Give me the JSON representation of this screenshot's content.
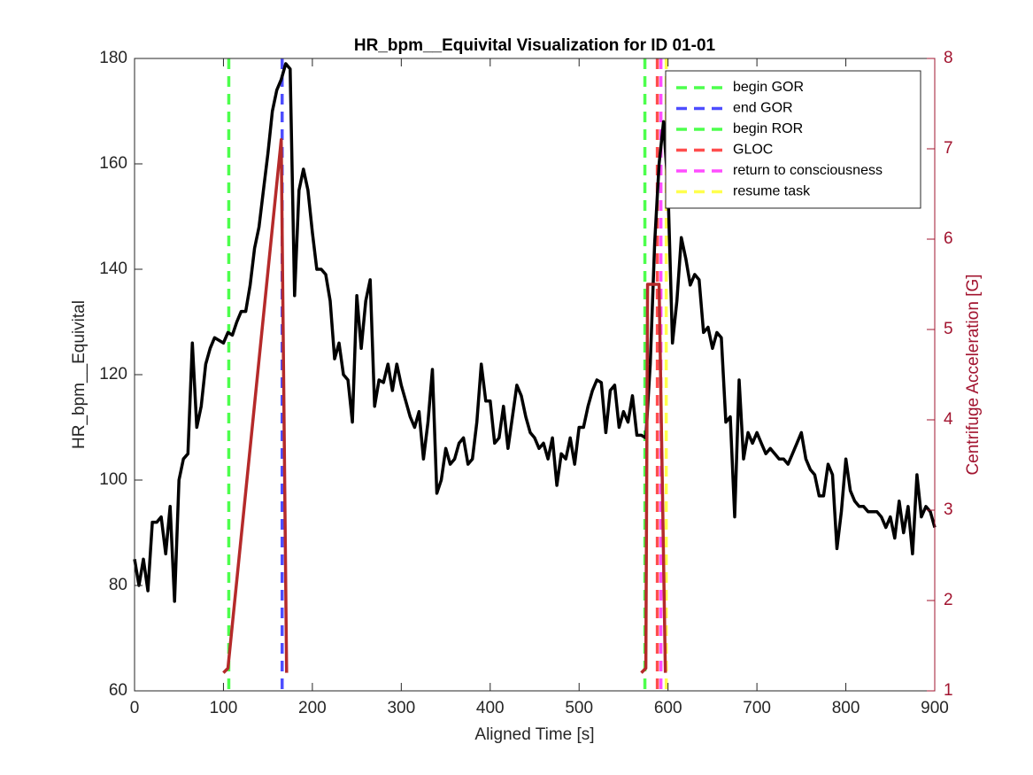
{
  "chart_data": {
    "type": "line",
    "title": "HR_bpm__Equivital Visualization for ID 01-01",
    "x_label": "Aligned Time [s]",
    "y_label": "HR_bpm__Equivital",
    "y2_label": "Centrifuge Acceleration [G]",
    "xlim": [
      0,
      900
    ],
    "xticks": [
      0,
      100,
      200,
      300,
      400,
      500,
      600,
      700,
      800,
      900
    ],
    "ylim": [
      60,
      180
    ],
    "yticks": [
      60,
      80,
      100,
      120,
      140,
      160,
      180
    ],
    "y2lim": [
      1,
      8
    ],
    "y2ticks": [
      1,
      2,
      3,
      4,
      5,
      6,
      7,
      8
    ],
    "y2_color": "#a2142f",
    "legend": "northeast",
    "series": [
      {
        "color": "#000000",
        "x": [
          0,
          5,
          10,
          15,
          20,
          25,
          30,
          35,
          40,
          45,
          50,
          55,
          60,
          65,
          70,
          75,
          80,
          85,
          90,
          95,
          100,
          105,
          110,
          115,
          120,
          125,
          130,
          135,
          140,
          145,
          150,
          155,
          160,
          165,
          170,
          175,
          180,
          185,
          190,
          195,
          200,
          205,
          210,
          215,
          220,
          225,
          230,
          235,
          240,
          245,
          250,
          255,
          260,
          265,
          270,
          275,
          280,
          285,
          290,
          295,
          300,
          305,
          310,
          315,
          320,
          325,
          330,
          335,
          340,
          345,
          350,
          355,
          360,
          365,
          370,
          375,
          380,
          385,
          390,
          395,
          400,
          405,
          410,
          415,
          420,
          425,
          430,
          435,
          440,
          445,
          450,
          455,
          460,
          465,
          470,
          475,
          480,
          485,
          490,
          495,
          500,
          505,
          510,
          515,
          520,
          525,
          530,
          535,
          540,
          545,
          550,
          555,
          560,
          565,
          570,
          575,
          580,
          585,
          590,
          595,
          600,
          605,
          610,
          615,
          620,
          625,
          630,
          635,
          640,
          645,
          650,
          655,
          660,
          665,
          670,
          675,
          680,
          685,
          690,
          695,
          700,
          705,
          710,
          715,
          720,
          725,
          730,
          735,
          740,
          745,
          750,
          755,
          760,
          765,
          770,
          775,
          780,
          785,
          790,
          795,
          800,
          805,
          810,
          815,
          820,
          825,
          830,
          835,
          840,
          845,
          850,
          855,
          860,
          865,
          870,
          875,
          880,
          885,
          890,
          895,
          900
        ],
        "values": [
          85,
          80,
          85,
          79,
          92,
          92,
          93,
          86,
          95,
          77,
          100,
          104,
          105,
          126,
          110,
          114,
          122,
          125,
          127,
          126.5,
          126,
          128,
          127.5,
          130,
          132,
          132,
          137,
          144,
          148,
          155,
          162,
          170,
          174,
          176,
          179,
          178,
          135,
          155,
          159,
          155,
          147,
          140,
          140,
          139,
          134,
          123,
          126,
          120,
          119,
          111,
          135,
          125,
          134,
          138,
          114,
          119,
          118.5,
          122,
          117,
          122,
          118,
          115,
          112,
          110,
          113,
          104,
          111,
          121,
          97.5,
          100,
          106,
          103,
          104,
          107,
          108,
          103,
          104,
          111,
          122,
          115,
          115,
          107,
          108,
          114,
          106,
          112,
          118,
          116,
          112,
          109,
          108,
          106,
          107,
          104,
          108,
          99,
          105,
          104,
          108,
          103,
          110,
          110,
          114,
          117,
          119,
          118.5,
          109,
          117,
          118,
          110,
          113,
          111,
          116,
          108.5,
          108.5,
          108,
          122,
          145,
          160,
          168,
          155,
          126,
          134,
          146,
          142,
          137,
          139,
          138,
          128,
          129,
          125,
          128,
          127,
          111,
          112,
          93,
          119,
          104,
          109,
          107,
          109,
          107,
          105,
          106,
          105,
          104,
          104,
          103,
          105,
          107,
          109,
          104,
          102,
          101,
          97,
          97,
          103,
          101,
          87,
          94,
          104,
          98,
          96,
          95,
          95,
          94,
          94,
          94,
          93,
          91,
          93,
          89,
          96,
          90,
          95,
          86,
          101,
          93,
          95,
          94,
          91
        ]
      },
      {
        "color": "#b52a2a",
        "axis": "y2",
        "x": [
          100,
          105,
          165,
          171,
          null,
          570,
          575,
          577,
          585,
          590,
          597
        ],
        "values": [
          1.2,
          1.25,
          7.1,
          1.2,
          null,
          1.2,
          1.25,
          5.5,
          5.5,
          5.5,
          1.2
        ]
      }
    ],
    "events": [
      {
        "name": "begin GOR",
        "color": "#4dff4d",
        "x": 106
      },
      {
        "name": "end GOR",
        "color": "#4d4dff",
        "x": 166
      },
      {
        "name": "begin ROR",
        "color": "#4dff4d",
        "x": 574
      },
      {
        "name": "GLOC",
        "color": "#ff4d4d",
        "x": 588
      },
      {
        "name": "return to consciousness",
        "color": "#ff4dff",
        "x": 592
      },
      {
        "name": "resume task",
        "color": "#ffff4d",
        "x": 598
      }
    ]
  }
}
